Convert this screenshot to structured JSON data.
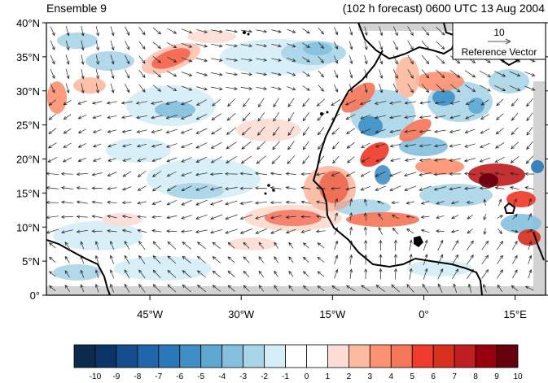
{
  "title_left": "Ensemble 9",
  "title_right": "(102 h forecast) 0600 UTC 13 Aug 2004",
  "reference_vector": {
    "magnitude": "10",
    "label": "Reference Vector"
  },
  "y_ticks": [
    {
      "label": "40°N",
      "lat": 40
    },
    {
      "label": "35°N",
      "lat": 35
    },
    {
      "label": "30°N",
      "lat": 30
    },
    {
      "label": "25°N",
      "lat": 25
    },
    {
      "label": "20°N",
      "lat": 20
    },
    {
      "label": "15°N",
      "lat": 15
    },
    {
      "label": "10°N",
      "lat": 10
    },
    {
      "label": "5°N",
      "lat": 5
    },
    {
      "label": "0°",
      "lat": 0
    }
  ],
  "x_ticks": [
    {
      "label": "45°W",
      "lon": -45
    },
    {
      "label": "30°W",
      "lon": -30
    },
    {
      "label": "15°W",
      "lon": -15
    },
    {
      "label": "0°",
      "lon": 0
    },
    {
      "label": "15°E",
      "lon": 15
    }
  ],
  "map_extent": {
    "lon": [
      -62,
      20
    ],
    "lat": [
      0,
      40
    ]
  },
  "colorbar": {
    "labels": [
      "-10",
      "-9",
      "-8",
      "-7",
      "-6",
      "-5",
      "-4",
      "-3",
      "-2",
      "-1",
      "0",
      "1",
      "2",
      "3",
      "4",
      "5",
      "6",
      "7",
      "8",
      "9",
      "10"
    ],
    "colors": [
      "#0b2a4d",
      "#0a3468",
      "#164d8c",
      "#2166ac",
      "#2a78b8",
      "#3f8fc5",
      "#5ea8d2",
      "#84c0de",
      "#a9d5e8",
      "#d5edf7",
      "#ffffff",
      "#ffffff",
      "#fcdcd4",
      "#fcbba1",
      "#fc9272",
      "#f4775a",
      "#ef3b2c",
      "#d7301f",
      "#c01f22",
      "#99000d",
      "#67000d"
    ]
  },
  "colors": {
    "land_gray": "#d3d3d3",
    "coast": "#000000",
    "arrow": "#000000"
  }
}
